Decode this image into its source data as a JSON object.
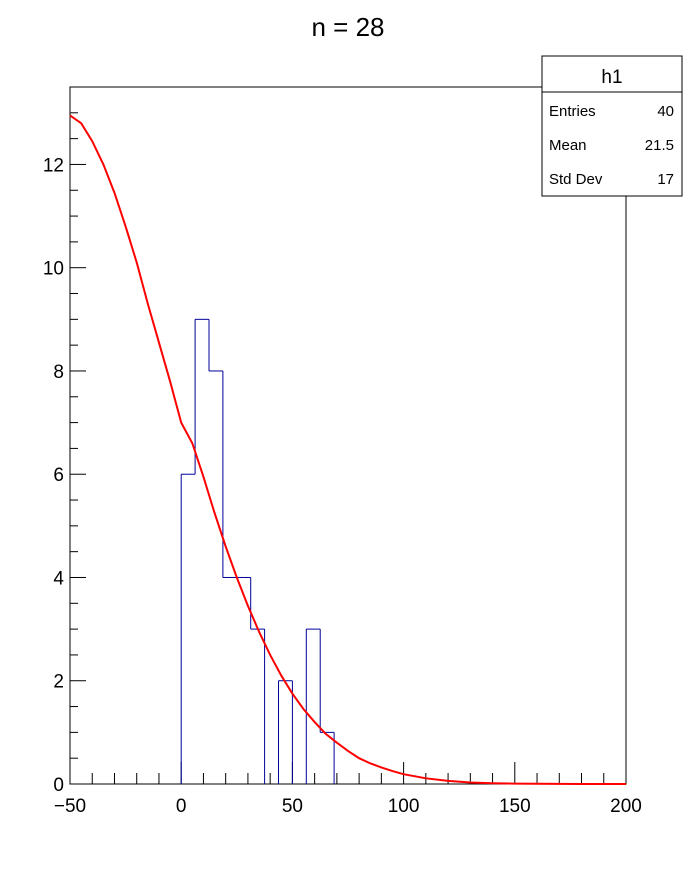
{
  "chart_data": {
    "type": "histogram",
    "title": "n = 28",
    "xlabel": "",
    "ylabel": "",
    "xlim": [
      -50,
      200
    ],
    "ylim": [
      0,
      13.5
    ],
    "x_ticks": [
      -50,
      0,
      50,
      100,
      150,
      200
    ],
    "x_tick_labels": [
      "−50",
      "0",
      "50",
      "100",
      "150",
      "200"
    ],
    "y_ticks": [
      0,
      2,
      4,
      6,
      8,
      10,
      12
    ],
    "y_tick_labels": [
      "0",
      "2",
      "4",
      "6",
      "8",
      "10",
      "12"
    ],
    "histogram": {
      "name": "h1",
      "color": "#000099",
      "bins": [
        {
          "x0": 0,
          "x1": 6.25,
          "count": 6
        },
        {
          "x0": 6.25,
          "x1": 12.5,
          "count": 9
        },
        {
          "x0": 12.5,
          "x1": 18.75,
          "count": 8
        },
        {
          "x0": 18.75,
          "x1": 25,
          "count": 4
        },
        {
          "x0": 25,
          "x1": 31.25,
          "count": 4
        },
        {
          "x0": 31.25,
          "x1": 37.5,
          "count": 3
        },
        {
          "x0": 37.5,
          "x1": 43.75,
          "count": 0
        },
        {
          "x0": 43.75,
          "x1": 50,
          "count": 2
        },
        {
          "x0": 50,
          "x1": 56.25,
          "count": 0
        },
        {
          "x0": 56.25,
          "x1": 62.5,
          "count": 3
        },
        {
          "x0": 62.5,
          "x1": 68.75,
          "count": 1
        }
      ]
    },
    "fit_curve": {
      "color": "#ff0000",
      "x": [
        -50,
        -45,
        -40,
        -35,
        -30,
        -25,
        -20,
        -15,
        -10,
        -5,
        0,
        5,
        10,
        15,
        20,
        25,
        30,
        35,
        40,
        45,
        50,
        55,
        60,
        65,
        70,
        75,
        80,
        85,
        90,
        95,
        100,
        110,
        120,
        130,
        140,
        150,
        160,
        170,
        180,
        190,
        200
      ],
      "y": [
        12.95,
        12.8,
        12.45,
        12.0,
        11.45,
        10.8,
        10.1,
        9.3,
        8.55,
        7.8,
        7.0,
        6.6,
        5.95,
        5.25,
        4.6,
        4.0,
        3.45,
        2.95,
        2.5,
        2.1,
        1.75,
        1.45,
        1.2,
        0.97,
        0.8,
        0.64,
        0.5,
        0.4,
        0.32,
        0.25,
        0.19,
        0.11,
        0.06,
        0.03,
        0.015,
        0.008,
        0.004,
        0.002,
        0.001,
        0.0005,
        0.0002
      ]
    },
    "stats_box": {
      "title": "h1",
      "rows": [
        {
          "label": "Entries",
          "value": "40"
        },
        {
          "label": "Mean",
          "value": "21.5"
        },
        {
          "label": "Std Dev",
          "value": "17"
        }
      ]
    }
  }
}
